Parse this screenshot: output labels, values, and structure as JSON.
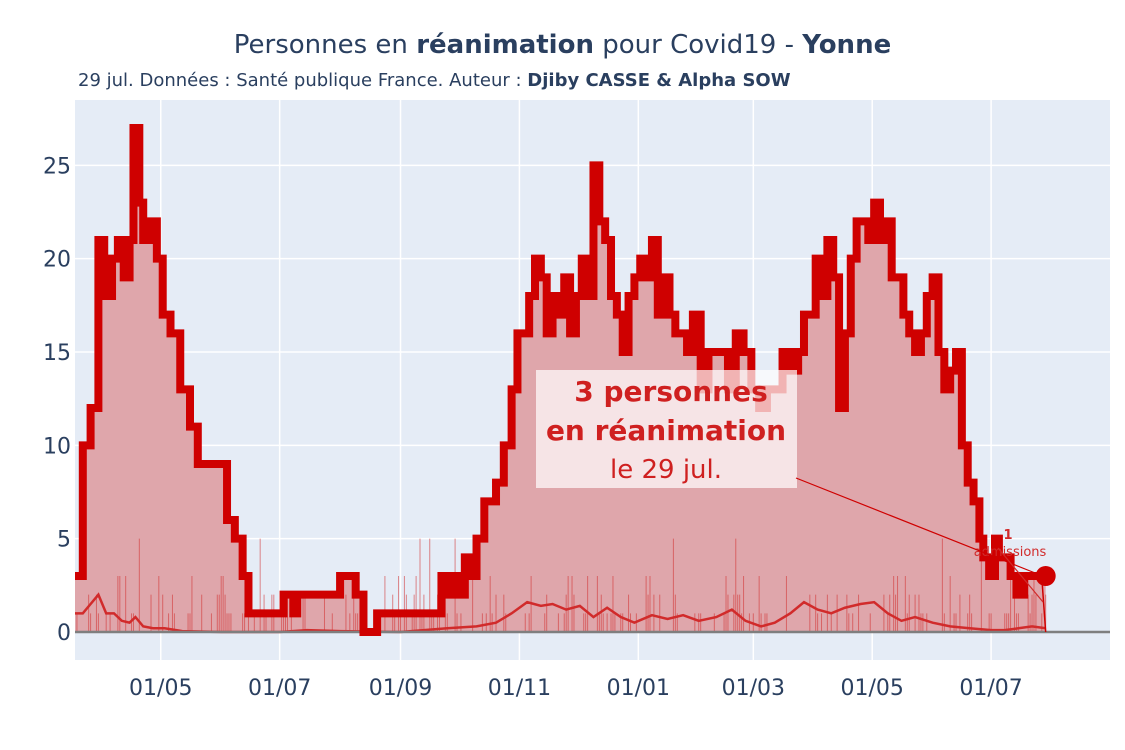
{
  "header": {
    "title_prefix": "Personnes en ",
    "title_bold": "réanimation",
    "title_middle": " pour Covid19 - ",
    "title_dept": "Yonne",
    "subtitle_prefix": "29 jul. Données : Santé publique France. Auteur : ",
    "subtitle_authors": "Djiby CASSE & Alpha SOW"
  },
  "annotation": {
    "line1": "3 personnes",
    "line2": "en réanimation",
    "line3": "le 29 jul."
  },
  "admissions_label": {
    "value": "1",
    "text": "admissions"
  },
  "colors": {
    "plot_bg": "#e5ecf6",
    "main_line": "#cf0000",
    "fill": "#dfa6ab",
    "admissions": "#d12b2b",
    "zero_line": "#7f7f7f",
    "grid": "#ffffff"
  },
  "chart_data": {
    "type": "area",
    "x_start": "2020-03-18",
    "x_end": "2021-07-29",
    "xlim": [
      "2020-03-18",
      "2021-08-31"
    ],
    "ylim": [
      -1.5,
      28.5
    ],
    "x_ticks": [
      {
        "date": "2020-05-01",
        "label": "01/05"
      },
      {
        "date": "2020-07-01",
        "label": "01/07"
      },
      {
        "date": "2020-09-01",
        "label": "01/09"
      },
      {
        "date": "2020-11-01",
        "label": "01/11"
      },
      {
        "date": "2021-01-01",
        "label": "01/01"
      },
      {
        "date": "2021-03-01",
        "label": "01/03"
      },
      {
        "date": "2021-05-01",
        "label": "01/05"
      },
      {
        "date": "2021-07-01",
        "label": "01/07"
      }
    ],
    "y_ticks": [
      0,
      5,
      10,
      15,
      20,
      25
    ],
    "series": [
      {
        "name": "réanimation",
        "points": [
          [
            "2020-03-18",
            3
          ],
          [
            "2020-03-22",
            10
          ],
          [
            "2020-03-26",
            12
          ],
          [
            "2020-03-30",
            21
          ],
          [
            "2020-04-02",
            18
          ],
          [
            "2020-04-06",
            20
          ],
          [
            "2020-04-09",
            21
          ],
          [
            "2020-04-12",
            19
          ],
          [
            "2020-04-15",
            21
          ],
          [
            "2020-04-17",
            27
          ],
          [
            "2020-04-20",
            23
          ],
          [
            "2020-04-22",
            21
          ],
          [
            "2020-04-25",
            22
          ],
          [
            "2020-04-29",
            20
          ],
          [
            "2020-05-02",
            17
          ],
          [
            "2020-05-06",
            16
          ],
          [
            "2020-05-11",
            13
          ],
          [
            "2020-05-16",
            11
          ],
          [
            "2020-05-20",
            9
          ],
          [
            "2020-05-25",
            9
          ],
          [
            "2020-05-31",
            9
          ],
          [
            "2020-06-04",
            6
          ],
          [
            "2020-06-08",
            5
          ],
          [
            "2020-06-12",
            3
          ],
          [
            "2020-06-15",
            1
          ],
          [
            "2020-06-22",
            1
          ],
          [
            "2020-06-28",
            1
          ],
          [
            "2020-07-03",
            2
          ],
          [
            "2020-07-08",
            1
          ],
          [
            "2020-07-10",
            2
          ],
          [
            "2020-07-20",
            2
          ],
          [
            "2020-07-28",
            2
          ],
          [
            "2020-08-01",
            3
          ],
          [
            "2020-08-07",
            3
          ],
          [
            "2020-08-09",
            2
          ],
          [
            "2020-08-13",
            0
          ],
          [
            "2020-08-18",
            0
          ],
          [
            "2020-08-20",
            1
          ],
          [
            "2020-08-26",
            1
          ],
          [
            "2020-09-01",
            1
          ],
          [
            "2020-09-09",
            1
          ],
          [
            "2020-09-16",
            1
          ],
          [
            "2020-09-20",
            1
          ],
          [
            "2020-09-22",
            3
          ],
          [
            "2020-09-25",
            2
          ],
          [
            "2020-09-28",
            3
          ],
          [
            "2020-10-01",
            2
          ],
          [
            "2020-10-04",
            4
          ],
          [
            "2020-10-07",
            3
          ],
          [
            "2020-10-10",
            5
          ],
          [
            "2020-10-14",
            7
          ],
          [
            "2020-10-17",
            7
          ],
          [
            "2020-10-20",
            8
          ],
          [
            "2020-10-24",
            10
          ],
          [
            "2020-10-28",
            13
          ],
          [
            "2020-10-31",
            16
          ],
          [
            "2020-11-03",
            16
          ],
          [
            "2020-11-06",
            18
          ],
          [
            "2020-11-09",
            20
          ],
          [
            "2020-11-12",
            19
          ],
          [
            "2020-11-15",
            16
          ],
          [
            "2020-11-18",
            18
          ],
          [
            "2020-11-21",
            17
          ],
          [
            "2020-11-24",
            19
          ],
          [
            "2020-11-27",
            16
          ],
          [
            "2020-11-30",
            18
          ],
          [
            "2020-12-03",
            20
          ],
          [
            "2020-12-06",
            18
          ],
          [
            "2020-12-09",
            25
          ],
          [
            "2020-12-12",
            22
          ],
          [
            "2020-12-15",
            21
          ],
          [
            "2020-12-18",
            18
          ],
          [
            "2020-12-21",
            17
          ],
          [
            "2020-12-24",
            15
          ],
          [
            "2020-12-27",
            18
          ],
          [
            "2020-12-30",
            19
          ],
          [
            "2021-01-02",
            20
          ],
          [
            "2021-01-05",
            19
          ],
          [
            "2021-01-08",
            21
          ],
          [
            "2021-01-11",
            17
          ],
          [
            "2021-01-14",
            19
          ],
          [
            "2021-01-17",
            17
          ],
          [
            "2021-01-20",
            16
          ],
          [
            "2021-01-23",
            16
          ],
          [
            "2021-01-26",
            15
          ],
          [
            "2021-01-29",
            17
          ],
          [
            "2021-02-02",
            13
          ],
          [
            "2021-02-06",
            15
          ],
          [
            "2021-02-11",
            15
          ],
          [
            "2021-02-16",
            13
          ],
          [
            "2021-02-20",
            16
          ],
          [
            "2021-02-24",
            15
          ],
          [
            "2021-02-28",
            13
          ],
          [
            "2021-03-04",
            12
          ],
          [
            "2021-03-08",
            13
          ],
          [
            "2021-03-12",
            13
          ],
          [
            "2021-03-16",
            15
          ],
          [
            "2021-03-20",
            14
          ],
          [
            "2021-03-24",
            15
          ],
          [
            "2021-03-27",
            17
          ],
          [
            "2021-03-30",
            17
          ],
          [
            "2021-04-02",
            20
          ],
          [
            "2021-04-05",
            18
          ],
          [
            "2021-04-08",
            21
          ],
          [
            "2021-04-11",
            19
          ],
          [
            "2021-04-14",
            12
          ],
          [
            "2021-04-17",
            16
          ],
          [
            "2021-04-20",
            20
          ],
          [
            "2021-04-23",
            22
          ],
          [
            "2021-04-26",
            22
          ],
          [
            "2021-04-29",
            21
          ],
          [
            "2021-05-02",
            23
          ],
          [
            "2021-05-05",
            21
          ],
          [
            "2021-05-08",
            22
          ],
          [
            "2021-05-11",
            19
          ],
          [
            "2021-05-14",
            19
          ],
          [
            "2021-05-17",
            17
          ],
          [
            "2021-05-20",
            16
          ],
          [
            "2021-05-23",
            15
          ],
          [
            "2021-05-26",
            16
          ],
          [
            "2021-05-29",
            18
          ],
          [
            "2021-06-01",
            19
          ],
          [
            "2021-06-04",
            15
          ],
          [
            "2021-06-07",
            13
          ],
          [
            "2021-06-10",
            14
          ],
          [
            "2021-06-13",
            15
          ],
          [
            "2021-06-16",
            10
          ],
          [
            "2021-06-19",
            8
          ],
          [
            "2021-06-22",
            7
          ],
          [
            "2021-06-25",
            5
          ],
          [
            "2021-06-27",
            4
          ],
          [
            "2021-06-30",
            3
          ],
          [
            "2021-07-03",
            5
          ],
          [
            "2021-07-05",
            4
          ],
          [
            "2021-07-08",
            4
          ],
          [
            "2021-07-11",
            3
          ],
          [
            "2021-07-14",
            2
          ],
          [
            "2021-07-18",
            3
          ],
          [
            "2021-07-22",
            3
          ],
          [
            "2021-07-25",
            3
          ],
          [
            "2021-07-29",
            3
          ]
        ]
      },
      {
        "name": "admissions",
        "points": [
          [
            "2020-03-18",
            1
          ],
          [
            "2020-03-22",
            1
          ],
          [
            "2020-03-26",
            1.5
          ],
          [
            "2020-03-30",
            2
          ],
          [
            "2020-04-03",
            1
          ],
          [
            "2020-04-07",
            1
          ],
          [
            "2020-04-11",
            0.6
          ],
          [
            "2020-04-15",
            0.5
          ],
          [
            "2020-04-18",
            0.8
          ],
          [
            "2020-04-22",
            0.3
          ],
          [
            "2020-04-27",
            0.2
          ],
          [
            "2020-05-03",
            0.2
          ],
          [
            "2020-05-12",
            0.05
          ],
          [
            "2020-06-01",
            0
          ],
          [
            "2020-07-01",
            0
          ],
          [
            "2020-07-15",
            0.1
          ],
          [
            "2020-08-01",
            0.05
          ],
          [
            "2020-09-01",
            0
          ],
          [
            "2020-09-25",
            0.2
          ],
          [
            "2020-10-10",
            0.3
          ],
          [
            "2020-10-20",
            0.5
          ],
          [
            "2020-10-28",
            1
          ],
          [
            "2020-11-05",
            1.6
          ],
          [
            "2020-11-12",
            1.4
          ],
          [
            "2020-11-18",
            1.5
          ],
          [
            "2020-11-25",
            1.2
          ],
          [
            "2020-12-02",
            1.4
          ],
          [
            "2020-12-09",
            0.8
          ],
          [
            "2020-12-16",
            1.3
          ],
          [
            "2020-12-23",
            0.8
          ],
          [
            "2020-12-30",
            0.5
          ],
          [
            "2021-01-08",
            0.9
          ],
          [
            "2021-01-16",
            0.7
          ],
          [
            "2021-01-24",
            0.9
          ],
          [
            "2021-02-01",
            0.6
          ],
          [
            "2021-02-10",
            0.8
          ],
          [
            "2021-02-18",
            1.2
          ],
          [
            "2021-02-25",
            0.6
          ],
          [
            "2021-03-05",
            0.3
          ],
          [
            "2021-03-12",
            0.5
          ],
          [
            "2021-03-20",
            1.0
          ],
          [
            "2021-03-27",
            1.6
          ],
          [
            "2021-04-03",
            1.2
          ],
          [
            "2021-04-10",
            1.0
          ],
          [
            "2021-04-17",
            1.3
          ],
          [
            "2021-04-25",
            1.5
          ],
          [
            "2021-05-02",
            1.6
          ],
          [
            "2021-05-09",
            1.0
          ],
          [
            "2021-05-16",
            0.6
          ],
          [
            "2021-05-23",
            0.8
          ],
          [
            "2021-06-01",
            0.5
          ],
          [
            "2021-06-10",
            0.3
          ],
          [
            "2021-06-20",
            0.2
          ],
          [
            "2021-07-01",
            0.1
          ],
          [
            "2021-07-08",
            0.1
          ],
          [
            "2021-07-15",
            0.2
          ],
          [
            "2021-07-22",
            0.3
          ],
          [
            "2021-07-29",
            0.2
          ]
        ]
      }
    ],
    "last_point": {
      "date": "2021-07-29",
      "value": 3
    }
  }
}
